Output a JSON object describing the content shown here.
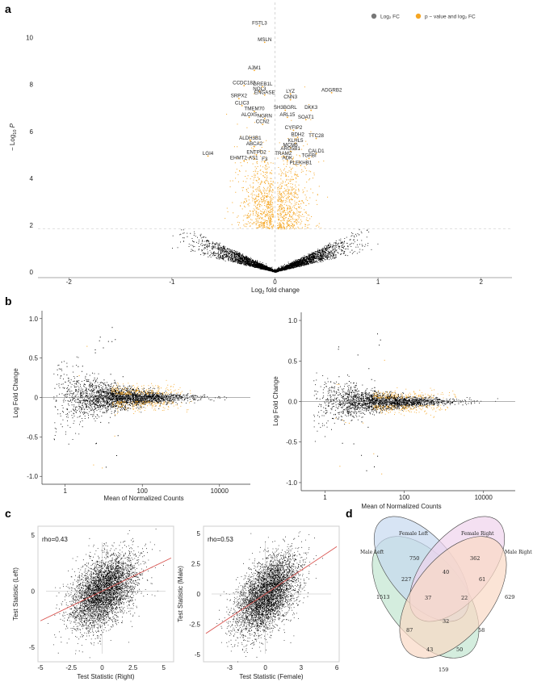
{
  "panel_letters": {
    "a": "a",
    "b": "b",
    "c": "c",
    "d": "d"
  },
  "colors": {
    "ns": "#000000",
    "sig": "#f5a623",
    "legend_ns": "#777777",
    "fit_line": "#d9534f",
    "grid_ref": "#bbbbbb"
  },
  "chart_data": [
    {
      "id": "volcano",
      "type": "scatter",
      "title": "",
      "xlabel_main": "Log",
      "xlabel_sub": "2",
      "xlabel_rest": " fold change",
      "ylabel_prefix": "− Log",
      "ylabel_sub": "10",
      "ylabel_p": "P",
      "xlim": [
        -2.3,
        2.3
      ],
      "ylim": [
        -0.2,
        11.5
      ],
      "xticks": [
        -2,
        -1,
        0,
        1,
        2
      ],
      "yticks": [
        0,
        2,
        4,
        6,
        8,
        10
      ],
      "p_threshold": 1.85,
      "fc_threshold": 0.0,
      "legend": [
        {
          "label": "Log₂ FC",
          "color": "#777777"
        },
        {
          "label": "p − value and log₂ FC",
          "color": "#f5a623"
        }
      ],
      "labeled_genes": [
        {
          "name": "FSTL3",
          "x": -0.15,
          "y": 10.5
        },
        {
          "name": "MSLN",
          "x": -0.1,
          "y": 9.8
        },
        {
          "name": "AJM1",
          "x": -0.2,
          "y": 8.6
        },
        {
          "name": "CCDC183",
          "x": -0.3,
          "y": 7.95
        },
        {
          "name": "GREB1L",
          "x": -0.12,
          "y": 7.9
        },
        {
          "name": "NOL3",
          "x": -0.15,
          "y": 7.7
        },
        {
          "name": "ENGASE",
          "x": -0.1,
          "y": 7.55
        },
        {
          "name": "SRPX2",
          "x": -0.35,
          "y": 7.4
        },
        {
          "name": "CLIC3",
          "x": -0.32,
          "y": 7.1
        },
        {
          "name": "TMEM70",
          "x": -0.2,
          "y": 6.85
        },
        {
          "name": "ALOX5",
          "x": -0.25,
          "y": 6.6
        },
        {
          "name": "NGRN",
          "x": -0.1,
          "y": 6.55
        },
        {
          "name": "CCN2",
          "x": -0.12,
          "y": 6.3
        },
        {
          "name": "ALDH3B1",
          "x": -0.24,
          "y": 5.6
        },
        {
          "name": "ABCA2",
          "x": -0.2,
          "y": 5.35
        },
        {
          "name": "ENTPD2",
          "x": -0.18,
          "y": 5.0
        },
        {
          "name": "LGI4",
          "x": -0.65,
          "y": 4.95
        },
        {
          "name": "EHMT2-AS1",
          "x": -0.3,
          "y": 4.75
        },
        {
          "name": "F3",
          "x": -0.1,
          "y": 4.7
        },
        {
          "name": "LYZ",
          "x": 0.15,
          "y": 7.6
        },
        {
          "name": "ADGRB2",
          "x": 0.55,
          "y": 7.65
        },
        {
          "name": "CNN3",
          "x": 0.15,
          "y": 7.35
        },
        {
          "name": "SH3BGRL",
          "x": 0.1,
          "y": 6.9
        },
        {
          "name": "DKK3",
          "x": 0.35,
          "y": 6.9
        },
        {
          "name": "ARL15",
          "x": 0.12,
          "y": 6.6
        },
        {
          "name": "SOAT1",
          "x": 0.3,
          "y": 6.5
        },
        {
          "name": "CYFIP2",
          "x": 0.18,
          "y": 6.05
        },
        {
          "name": "BDH2",
          "x": 0.22,
          "y": 5.75
        },
        {
          "name": "TTC28",
          "x": 0.4,
          "y": 5.7
        },
        {
          "name": "KLHL5",
          "x": 0.2,
          "y": 5.5
        },
        {
          "name": "MCM6",
          "x": 0.15,
          "y": 5.3
        },
        {
          "name": "ARG5B1",
          "x": 0.15,
          "y": 5.15
        },
        {
          "name": "CALD1",
          "x": 0.4,
          "y": 5.05
        },
        {
          "name": "TRAM2",
          "x": 0.08,
          "y": 4.95
        },
        {
          "name": "TGFBI",
          "x": 0.33,
          "y": 4.85
        },
        {
          "name": "ADK",
          "x": 0.12,
          "y": 4.75
        },
        {
          "name": "PLEKHB1",
          "x": 0.25,
          "y": 4.55
        }
      ]
    },
    {
      "id": "ma_left",
      "type": "scatter",
      "title": "",
      "xlabel": "Mean of Normalized Counts",
      "ylabel": "Log Fold Change",
      "xscale": "log10",
      "xlim_log10": [
        -0.6,
        4.8
      ],
      "ylim": [
        -1.1,
        1.1
      ],
      "xticks": [
        {
          "v": 0,
          "label": "1"
        },
        {
          "v": 2,
          "label": "100"
        },
        {
          "v": 4,
          "label": "10000"
        }
      ],
      "yticks": [
        -1.0,
        -0.5,
        0,
        0.5,
        1.0
      ],
      "ytick_labels": [
        "-1.0",
        "-0.5",
        "0",
        "0.5",
        "1.0"
      ]
    },
    {
      "id": "ma_right",
      "type": "scatter",
      "title": "",
      "xlabel": "Mean of Normalized Counts",
      "ylabel": "Log Fold Change",
      "xscale": "log10",
      "xlim_log10": [
        -0.6,
        4.8
      ],
      "ylim": [
        -1.1,
        1.1
      ],
      "xticks": [
        {
          "v": 0,
          "label": "1"
        },
        {
          "v": 2,
          "label": "100"
        },
        {
          "v": 4,
          "label": "10000"
        }
      ],
      "yticks": [
        -1.0,
        -0.5,
        0.0,
        0.5,
        1.0
      ],
      "ytick_labels": [
        "-1.0",
        "-0.5",
        "0.0",
        "0.5",
        "1.0"
      ]
    },
    {
      "id": "corr_left",
      "type": "scatter",
      "title": "",
      "annotation": "rho=0.43",
      "rho": 0.43,
      "xlabel": "Test Statistic (Right)",
      "ylabel": "Test Statistic (Left)",
      "xlim": [
        -5.2,
        5.8
      ],
      "ylim": [
        -6.3,
        5.8
      ],
      "xticks": [
        -5,
        -2.5,
        0,
        2.5,
        5
      ],
      "xtick_labels": [
        "-5",
        "-2.5",
        "0",
        "2.5",
        "5"
      ],
      "yticks": [
        -5,
        0,
        5
      ],
      "ytick_labels": [
        "-5",
        "0",
        "5"
      ]
    },
    {
      "id": "corr_right",
      "type": "scatter",
      "title": "",
      "annotation": "rho=0.53",
      "rho": 0.53,
      "xlabel": "Test Statistic (Female)",
      "ylabel": "Test Statistic (Male)",
      "xlim": [
        -5.2,
        6.2
      ],
      "ylim": [
        -5.6,
        5.6
      ],
      "xticks": [
        -3,
        0,
        3,
        6
      ],
      "xtick_labels": [
        "-3",
        "0",
        "3",
        "6"
      ],
      "yticks": [
        -5,
        -2.5,
        0,
        2.5,
        5
      ],
      "ytick_labels": [
        "-5",
        "-2.5",
        "0",
        "2.5",
        "5"
      ]
    },
    {
      "id": "venn",
      "type": "venn",
      "sets": [
        {
          "name": "Male Left",
          "color": "#c9e8d6"
        },
        {
          "name": "Female Left",
          "color": "#c6d9ef"
        },
        {
          "name": "Female Right",
          "color": "#efd3ec"
        },
        {
          "name": "Male Right",
          "color": "#fad9c4"
        }
      ],
      "regions": [
        {
          "sets": [
            "Male Left"
          ],
          "value": 1513
        },
        {
          "sets": [
            "Female Left"
          ],
          "value": 750
        },
        {
          "sets": [
            "Female Right"
          ],
          "value": 362
        },
        {
          "sets": [
            "Male Right"
          ],
          "value": 629
        },
        {
          "sets": [
            "Male Left",
            "Female Left"
          ],
          "value": 227
        },
        {
          "sets": [
            "Female Left",
            "Female Right"
          ],
          "value": 40
        },
        {
          "sets": [
            "Female Right",
            "Male Right"
          ],
          "value": 61
        },
        {
          "sets": [
            "Male Left",
            "Female Left",
            "Female Right"
          ],
          "value": 37
        },
        {
          "sets": [
            "Female Left",
            "Female Right",
            "Male Right"
          ],
          "value": 22
        },
        {
          "sets": [
            "Male Left",
            "Female Left",
            "Female Right",
            "Male Right"
          ],
          "value": 32
        },
        {
          "sets": [
            "Male Left",
            "Female Right"
          ],
          "value": 87
        },
        {
          "sets": [
            "Female Left",
            "Male Right"
          ],
          "value": 58
        },
        {
          "sets": [
            "Male Left",
            "Female Right",
            "Male Right"
          ],
          "value": 43
        },
        {
          "sets": [
            "Male Left",
            "Female Left",
            "Male Right"
          ],
          "value": 50
        },
        {
          "sets": [
            "Male Left",
            "Male Right"
          ],
          "value": 159
        }
      ]
    }
  ]
}
